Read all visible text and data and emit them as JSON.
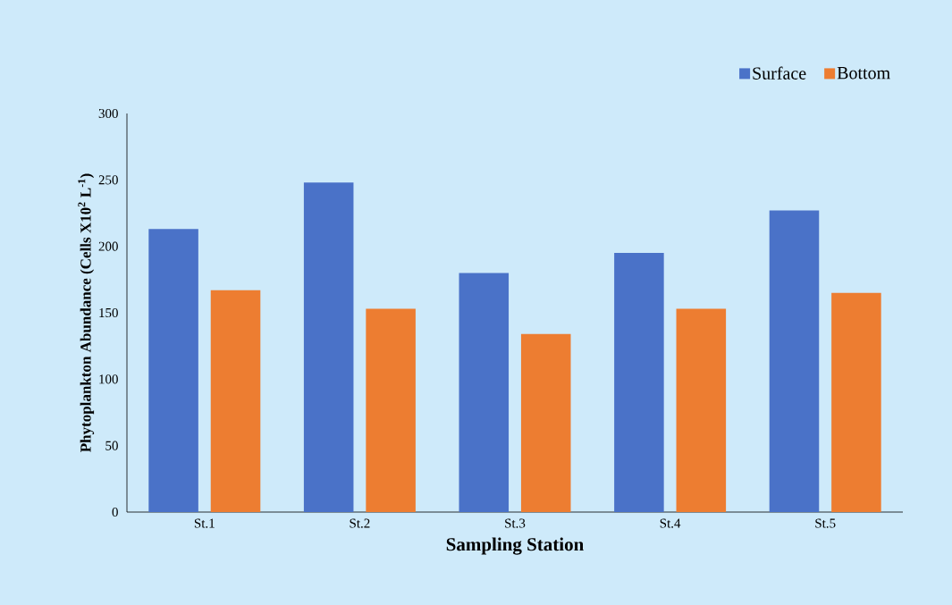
{
  "chart_data": {
    "type": "bar",
    "xlabel": "Sampling  Station",
    "ylabel": "Phytoplankton Abundance (Cells X10$^{2}$ L$^{-1}$)",
    "categories": [
      "St.1",
      "St.2",
      "St.3",
      "St.4",
      "St.5"
    ],
    "series": [
      {
        "name": "Surface",
        "color": "#4a72c8",
        "values": [
          213,
          248,
          180,
          195,
          227
        ]
      },
      {
        "name": "Bottom",
        "color": "#ed7d31",
        "values": [
          167,
          153,
          134,
          153,
          165
        ]
      }
    ],
    "ylim": [
      0,
      300
    ],
    "yticks": [
      0,
      50,
      100,
      150,
      200,
      250,
      300
    ],
    "legend": "top right"
  }
}
